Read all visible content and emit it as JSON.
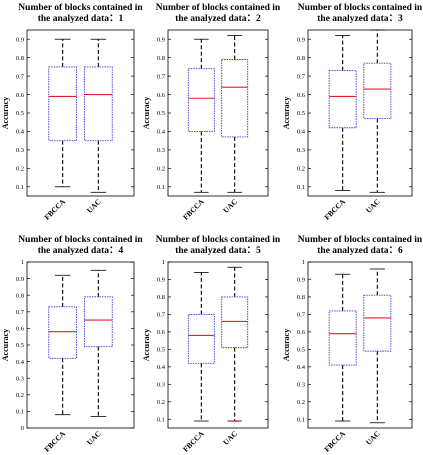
{
  "colors": {
    "box": "#3a3ad0",
    "median": "#e0202a",
    "whisker": "#000000",
    "outlier": "#e0202a",
    "axes": "#000000"
  },
  "chart_data": [
    {
      "type": "box",
      "title": [
        "Number of blocks contained in",
        "the analyzed data：1"
      ],
      "ylabel": "Accuracy",
      "ylim": [
        0.05,
        0.95
      ],
      "yticks": [
        "0.1",
        "0.2",
        "0.3",
        "0.4",
        "0.5",
        "0.6",
        "0.7",
        "0.8",
        "0.9"
      ],
      "categories": [
        "FBCCA",
        "UAC"
      ],
      "boxes": [
        {
          "min": 0.1,
          "q1": 0.35,
          "median": 0.59,
          "q3": 0.75,
          "max": 0.9
        },
        {
          "min": 0.07,
          "q1": 0.35,
          "median": 0.6,
          "q3": 0.75,
          "max": 0.9
        }
      ]
    },
    {
      "type": "box",
      "title": [
        "Number of blocks contained in",
        "the analyzed data：2"
      ],
      "ylabel": "Accuracy",
      "ylim": [
        0.05,
        0.95
      ],
      "yticks": [
        "0.1",
        "0.2",
        "0.3",
        "0.4",
        "0.5",
        "0.6",
        "0.7",
        "0.8",
        "0.9"
      ],
      "categories": [
        "FBCCA",
        "UAC"
      ],
      "boxes": [
        {
          "min": 0.07,
          "q1": 0.4,
          "median": 0.58,
          "q3": 0.74,
          "max": 0.9
        },
        {
          "min": 0.07,
          "q1": 0.37,
          "median": 0.64,
          "q3": 0.79,
          "max": 0.92
        }
      ]
    },
    {
      "type": "box",
      "title": [
        "Number of blocks contained in",
        "the analyzed data：3"
      ],
      "ylabel": "Accuracy",
      "ylim": [
        0.05,
        0.95
      ],
      "yticks": [
        "0.1",
        "0.2",
        "0.3",
        "0.4",
        "0.5",
        "0.6",
        "0.7",
        "0.8",
        "0.9"
      ],
      "categories": [
        "FBCCA",
        "UAC"
      ],
      "boxes": [
        {
          "min": 0.08,
          "q1": 0.42,
          "median": 0.59,
          "q3": 0.73,
          "max": 0.92
        },
        {
          "min": 0.07,
          "q1": 0.47,
          "median": 0.63,
          "q3": 0.77,
          "max": 0.95
        }
      ]
    },
    {
      "type": "box",
      "title": [
        "Number of blocks contained in",
        "the analyzed data：4"
      ],
      "ylabel": "Accuracy",
      "ylim": [
        0.0,
        1.0
      ],
      "yticks": [
        "0",
        "0.1",
        "0.2",
        "0.3",
        "0.4",
        "0.5",
        "0.6",
        "0.7",
        "0.8",
        "0.9",
        "1"
      ],
      "categories": [
        "FBCCA",
        "UAC"
      ],
      "boxes": [
        {
          "min": 0.08,
          "q1": 0.42,
          "median": 0.58,
          "q3": 0.73,
          "max": 0.92
        },
        {
          "min": 0.07,
          "q1": 0.49,
          "median": 0.65,
          "q3": 0.79,
          "max": 0.95
        }
      ]
    },
    {
      "type": "box",
      "title": [
        "Number of blocks contained in",
        "the analyzed data：5"
      ],
      "ylabel": "Accuracy",
      "ylim": [
        0.05,
        1.0
      ],
      "yticks": [
        "0.1",
        "0.2",
        "0.3",
        "0.4",
        "0.5",
        "0.6",
        "0.7",
        "0.8",
        "0.9",
        "1"
      ],
      "categories": [
        "FBCCA",
        "UAC"
      ],
      "boxes": [
        {
          "min": 0.09,
          "q1": 0.42,
          "median": 0.58,
          "q3": 0.7,
          "max": 0.94
        },
        {
          "min": 0.09,
          "q1": 0.51,
          "median": 0.66,
          "q3": 0.8,
          "max": 0.97,
          "outliers": [
            0.09
          ]
        }
      ]
    },
    {
      "type": "box",
      "title": [
        "Number of blocks contained in",
        "the analyzed data：6"
      ],
      "ylabel": "Accuracy",
      "ylim": [
        0.05,
        1.0
      ],
      "yticks": [
        "0.1",
        "0.2",
        "0.3",
        "0.4",
        "0.5",
        "0.6",
        "0.7",
        "0.8",
        "0.9",
        "1"
      ],
      "categories": [
        "FBCCA",
        "UAC"
      ],
      "boxes": [
        {
          "min": 0.09,
          "q1": 0.41,
          "median": 0.59,
          "q3": 0.72,
          "max": 0.93
        },
        {
          "min": 0.08,
          "q1": 0.49,
          "median": 0.68,
          "q3": 0.81,
          "max": 0.96
        }
      ]
    }
  ]
}
